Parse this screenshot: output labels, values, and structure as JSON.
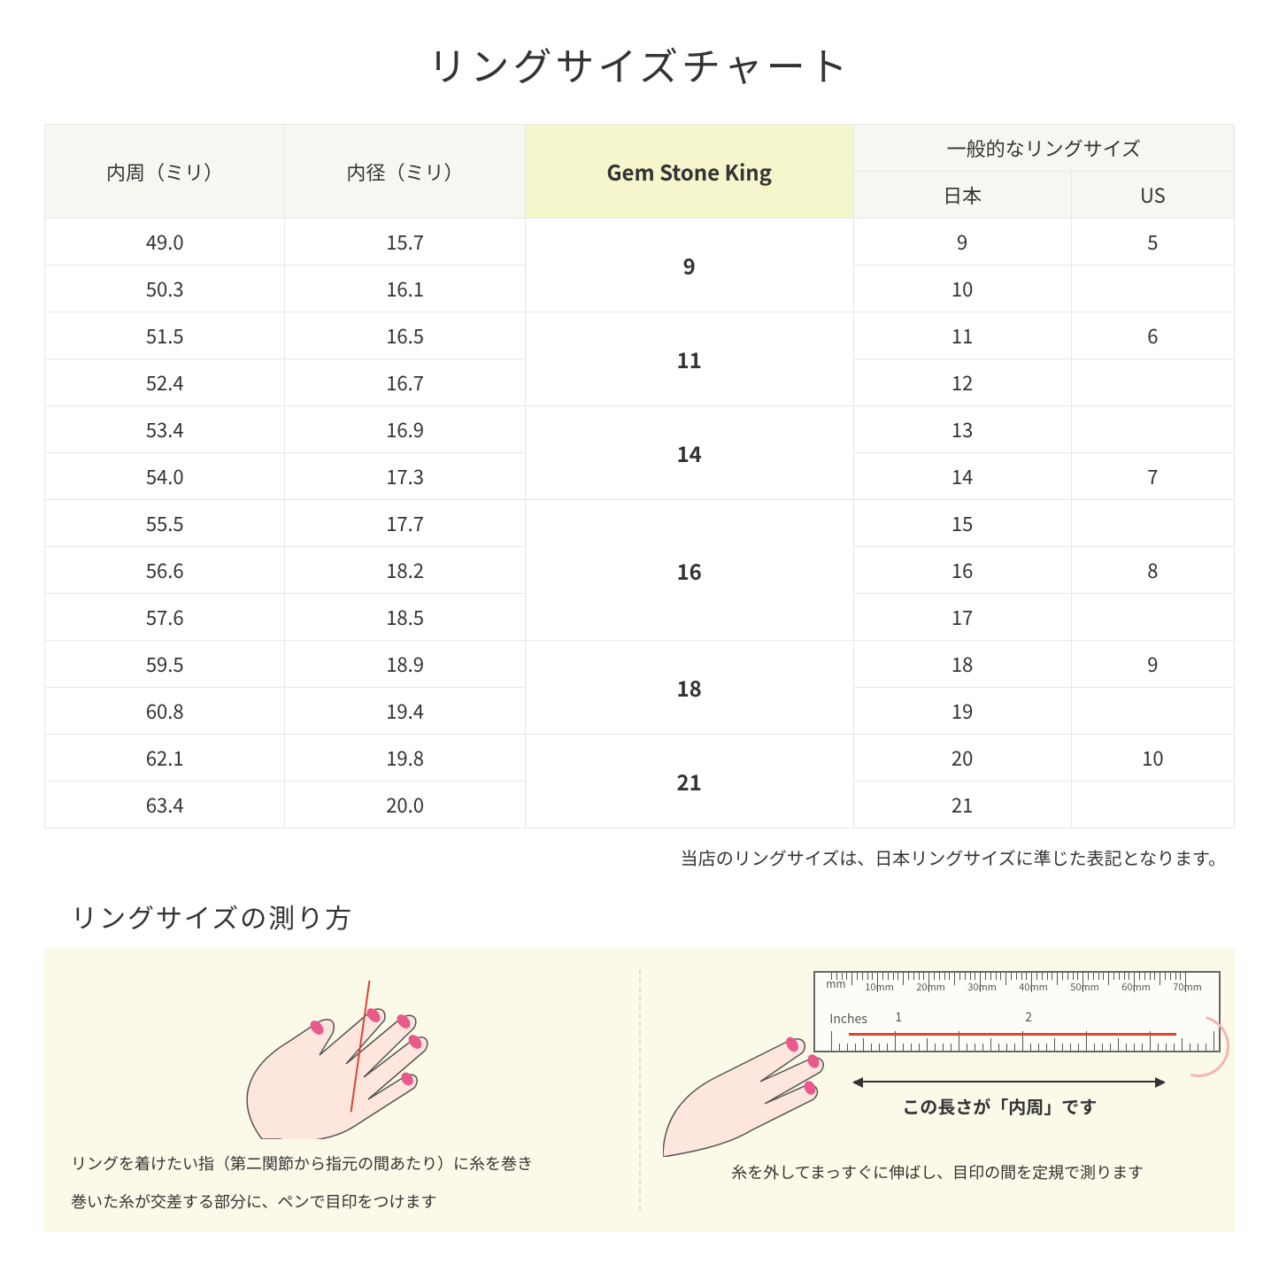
{
  "title": "リングサイズチャート",
  "table": {
    "headers": {
      "circumference": "内周（ミリ）",
      "diameter": "内径（ミリ）",
      "gsk": "Gem Stone King",
      "common": "一般的なリングサイズ",
      "japan": "日本",
      "us": "US"
    },
    "groups": [
      {
        "gsk": "9",
        "rows": [
          {
            "c": "49.0",
            "d": "15.7",
            "jp": "9",
            "us": "5"
          },
          {
            "c": "50.3",
            "d": "16.1",
            "jp": "10",
            "us": ""
          }
        ]
      },
      {
        "gsk": "11",
        "rows": [
          {
            "c": "51.5",
            "d": "16.5",
            "jp": "11",
            "us": "6"
          },
          {
            "c": "52.4",
            "d": "16.7",
            "jp": "12",
            "us": ""
          }
        ]
      },
      {
        "gsk": "14",
        "rows": [
          {
            "c": "53.4",
            "d": "16.9",
            "jp": "13",
            "us": ""
          },
          {
            "c": "54.0",
            "d": "17.3",
            "jp": "14",
            "us": "7"
          }
        ]
      },
      {
        "gsk": "16",
        "rows": [
          {
            "c": "55.5",
            "d": "17.7",
            "jp": "15",
            "us": ""
          },
          {
            "c": "56.6",
            "d": "18.2",
            "jp": "16",
            "us": "8"
          },
          {
            "c": "57.6",
            "d": "18.5",
            "jp": "17",
            "us": ""
          }
        ]
      },
      {
        "gsk": "18",
        "rows": [
          {
            "c": "59.5",
            "d": "18.9",
            "jp": "18",
            "us": "9"
          },
          {
            "c": "60.8",
            "d": "19.4",
            "jp": "19",
            "us": ""
          }
        ]
      },
      {
        "gsk": "21",
        "rows": [
          {
            "c": "62.1",
            "d": "19.8",
            "jp": "20",
            "us": "10"
          },
          {
            "c": "63.4",
            "d": "20.0",
            "jp": "21",
            "us": ""
          }
        ]
      }
    ]
  },
  "note": "当店のリングサイズは、日本リングサイズに準じた表記となります。",
  "measure": {
    "title": "リングサイズの測り方",
    "left_caption_1": "リングを着けたい指（第二関節から指元の間あたり）に糸を巻き",
    "left_caption_2": "巻いた糸が交差する部分に、ペンで目印をつけます",
    "right_arrow_label": "この長さが「内周」です",
    "right_caption": "糸を外してまっすぐに伸ばし、目印の間を定規で測ります",
    "ruler": {
      "mm_label": "mm",
      "inch_label": "Inches",
      "mm_ticks": [
        "10mm",
        "20mm",
        "30mm",
        "40mm",
        "50mm",
        "60mm",
        "70mm"
      ],
      "inch_ticks": [
        "1",
        "2"
      ]
    }
  },
  "colors": {
    "header_bg": "#f7f7f2",
    "gsk_bg": "#f6f6cd",
    "panel_bg": "#fbf9e8",
    "border": "#e8e8e8",
    "thread": "#d43",
    "hand_fill": "#fce6dd",
    "nail": "#e85a8a"
  }
}
